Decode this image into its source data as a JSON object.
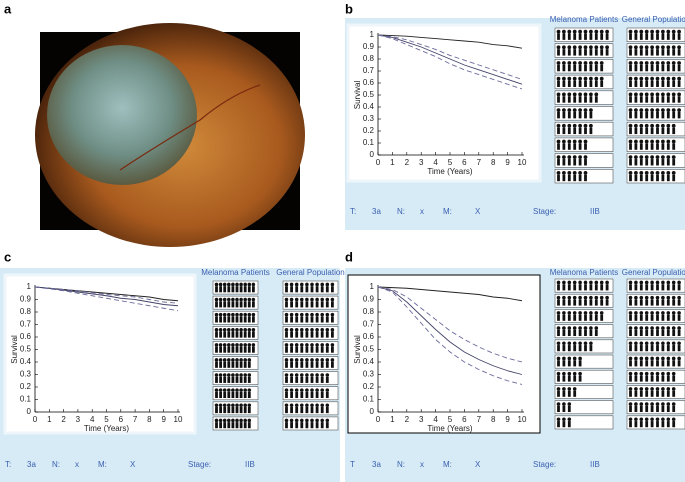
{
  "panel_a": {
    "label": "a"
  },
  "chart_data": [
    {
      "type": "line",
      "label": "b",
      "xlabel": "Time (Years)",
      "ylabel": "Survival",
      "x": [
        0,
        1,
        2,
        3,
        4,
        5,
        6,
        7,
        8,
        9,
        10
      ],
      "xlim": [
        0,
        10
      ],
      "ylim": [
        0,
        1
      ],
      "xticks": [
        0,
        1,
        2,
        3,
        4,
        5,
        6,
        7,
        8,
        9,
        10
      ],
      "yticks": [
        0,
        0.1,
        0.2,
        0.3,
        0.4,
        0.5,
        0.6,
        0.7,
        0.8,
        0.9,
        1
      ],
      "series": [
        {
          "color": "#222222",
          "dash": false,
          "values": [
            1,
            0.995,
            0.99,
            0.98,
            0.97,
            0.96,
            0.95,
            0.94,
            0.92,
            0.91,
            0.89
          ]
        },
        {
          "color": "#44446a",
          "dash": false,
          "values": [
            1,
            0.98,
            0.94,
            0.9,
            0.85,
            0.8,
            0.75,
            0.71,
            0.67,
            0.63,
            0.59
          ]
        },
        {
          "color": "#6a6a9a",
          "dash": true,
          "values": [
            1,
            0.985,
            0.96,
            0.92,
            0.88,
            0.83,
            0.79,
            0.75,
            0.71,
            0.67,
            0.63
          ]
        },
        {
          "color": "#6a6a9a",
          "dash": true,
          "values": [
            1,
            0.97,
            0.92,
            0.87,
            0.82,
            0.76,
            0.71,
            0.67,
            0.63,
            0.59,
            0.55
          ]
        }
      ],
      "icon_arrays": [
        {
          "title": "Melanoma Patients",
          "counts": [
            10,
            10,
            9,
            9,
            8,
            7,
            7,
            6,
            6,
            6
          ]
        },
        {
          "title": "General Population",
          "counts": [
            10,
            10,
            10,
            10,
            10,
            10,
            9,
            9,
            9,
            9
          ]
        }
      ],
      "staging": [
        "T:",
        "3a",
        "N:",
        "x",
        "M:",
        "X",
        "Stage:",
        "IIB"
      ]
    },
    {
      "type": "line",
      "label": "c",
      "xlabel": "Time (Years)",
      "ylabel": "Survival",
      "x": [
        0,
        1,
        2,
        3,
        4,
        5,
        6,
        7,
        8,
        9,
        10
      ],
      "xlim": [
        0,
        10
      ],
      "ylim": [
        0,
        1
      ],
      "xticks": [
        0,
        1,
        2,
        3,
        4,
        5,
        6,
        7,
        8,
        9,
        10
      ],
      "yticks": [
        0,
        0.1,
        0.2,
        0.3,
        0.4,
        0.5,
        0.6,
        0.7,
        0.8,
        0.9,
        1
      ],
      "series": [
        {
          "color": "#222222",
          "dash": false,
          "values": [
            1,
            0.99,
            0.98,
            0.97,
            0.96,
            0.95,
            0.94,
            0.93,
            0.92,
            0.9,
            0.89
          ]
        },
        {
          "color": "#44446a",
          "dash": false,
          "values": [
            1,
            0.99,
            0.975,
            0.96,
            0.945,
            0.93,
            0.91,
            0.9,
            0.88,
            0.86,
            0.85
          ]
        },
        {
          "color": "#6a6a9a",
          "dash": true,
          "values": [
            1,
            0.99,
            0.98,
            0.97,
            0.955,
            0.94,
            0.93,
            0.92,
            0.9,
            0.88,
            0.87
          ]
        },
        {
          "color": "#6a6a9a",
          "dash": true,
          "values": [
            1,
            0.985,
            0.97,
            0.95,
            0.93,
            0.91,
            0.89,
            0.87,
            0.85,
            0.83,
            0.81
          ]
        }
      ],
      "icon_arrays": [
        {
          "title": "Melanoma Patients",
          "counts": [
            10,
            10,
            10,
            10,
            10,
            9,
            9,
            9,
            9,
            9
          ]
        },
        {
          "title": "General Population",
          "counts": [
            10,
            10,
            10,
            10,
            10,
            10,
            9,
            9,
            9,
            9
          ]
        }
      ],
      "staging": [
        "T:",
        "3a",
        "N:",
        "x",
        "M:",
        "X",
        "Stage:",
        "IIB"
      ]
    },
    {
      "type": "line",
      "label": "d",
      "xlabel": "Time (Years)",
      "ylabel": "Survival",
      "x": [
        0,
        1,
        2,
        3,
        4,
        5,
        6,
        7,
        8,
        9,
        10
      ],
      "xlim": [
        0,
        10
      ],
      "ylim": [
        0,
        1
      ],
      "xticks": [
        0,
        1,
        2,
        3,
        4,
        5,
        6,
        7,
        8,
        9,
        10
      ],
      "yticks": [
        0,
        0.1,
        0.2,
        0.3,
        0.4,
        0.5,
        0.6,
        0.7,
        0.8,
        0.9,
        1
      ],
      "series": [
        {
          "color": "#222222",
          "dash": false,
          "values": [
            1,
            0.995,
            0.99,
            0.98,
            0.97,
            0.96,
            0.95,
            0.94,
            0.92,
            0.91,
            0.89
          ]
        },
        {
          "color": "#44446a",
          "dash": false,
          "values": [
            1,
            0.97,
            0.88,
            0.77,
            0.66,
            0.56,
            0.48,
            0.42,
            0.37,
            0.33,
            0.3
          ]
        },
        {
          "color": "#6a6a9a",
          "dash": true,
          "values": [
            1,
            0.98,
            0.92,
            0.83,
            0.74,
            0.65,
            0.58,
            0.52,
            0.47,
            0.43,
            0.4
          ]
        },
        {
          "color": "#6a6a9a",
          "dash": true,
          "values": [
            1,
            0.96,
            0.84,
            0.71,
            0.58,
            0.48,
            0.4,
            0.34,
            0.29,
            0.25,
            0.22
          ]
        }
      ],
      "icon_arrays": [
        {
          "title": "Melanoma Patients",
          "counts": [
            10,
            10,
            9,
            8,
            7,
            5,
            5,
            4,
            3,
            3
          ]
        },
        {
          "title": "General Population",
          "counts": [
            10,
            10,
            10,
            10,
            10,
            10,
            9,
            9,
            9,
            9
          ]
        }
      ],
      "staging": [
        "T",
        "3a",
        "N:",
        "x",
        "M:",
        "X",
        "Stage:",
        "IIB"
      ]
    }
  ]
}
